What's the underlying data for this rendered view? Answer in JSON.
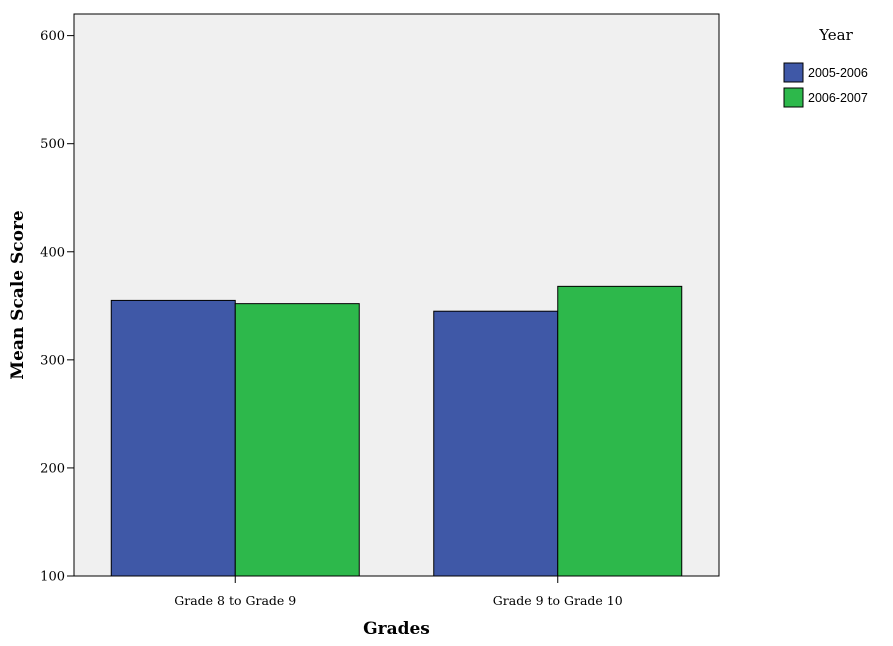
{
  "chart_data": {
    "type": "bar",
    "categories": [
      "Grade 8 to Grade 9",
      "Grade 9 to Grade 10"
    ],
    "series": [
      {
        "name": "2005-2006",
        "values": [
          355,
          345
        ],
        "color": "#3f58a7"
      },
      {
        "name": "2006-2007",
        "values": [
          352,
          368
        ],
        "color": "#2db84b"
      }
    ],
    "xlabel": "Grades",
    "ylabel": "Mean Scale Score",
    "ylim": [
      100,
      620
    ],
    "yticks": [
      100,
      200,
      300,
      400,
      500,
      600
    ],
    "legend": {
      "title": "Year",
      "placement": "right"
    },
    "plot_background": "#f0f0f0",
    "grid": false
  }
}
